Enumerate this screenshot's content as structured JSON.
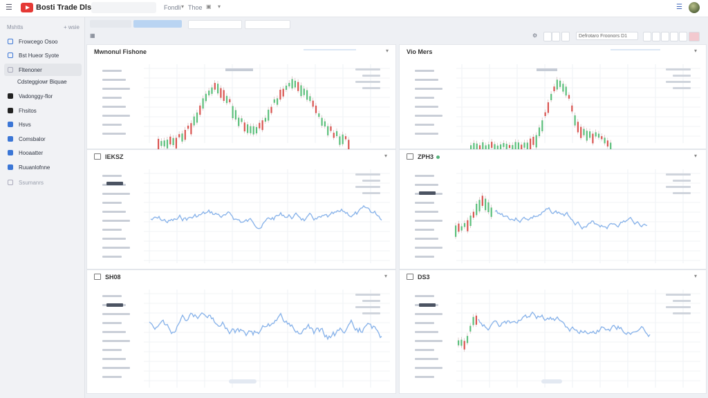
{
  "app": {
    "title": "Bosti Trade Dlsor"
  },
  "top_menu": [
    "Fondli",
    "Thoe"
  ],
  "sidebar": {
    "header": "Mshtts",
    "add": "+ wsie",
    "items": [
      {
        "label": "Frowcego Osoo",
        "icon": "window-icon"
      },
      {
        "label": "Bst Hueor Syote",
        "icon": "window-icon"
      },
      {
        "label": "Fltenoner",
        "icon": "window-icon",
        "active": true
      },
      {
        "label": "Cdsteggiowr Biquae",
        "icon": "none",
        "sub": true
      },
      {
        "label": "Vadonggy-flor",
        "icon": "window-icon"
      },
      {
        "label": "Fhsitos",
        "icon": "flag-icon"
      },
      {
        "label": "Hsvs",
        "icon": "phone-icon"
      },
      {
        "label": "Comsbalor",
        "icon": "doc-icon"
      },
      {
        "label": "Hooaatter",
        "icon": "doc-icon"
      },
      {
        "label": "Ruuanlofnne",
        "icon": "square-icon"
      },
      {
        "label": "Ssumanrs",
        "icon": "grid-icon",
        "muted": true
      }
    ]
  },
  "toolbar": {
    "select_value": "Defrotaro Froonors D1"
  },
  "panels": {
    "tl": {
      "title": "Mwnonul Fishone"
    },
    "tr": {
      "title": "Vio Mers"
    },
    "ml": {
      "title": "IEKSZ"
    },
    "mr": {
      "title": "ZPH3"
    },
    "bl": {
      "title": "SH08"
    },
    "br": {
      "title": "DS3"
    }
  },
  "colors": {
    "accent": "#3b76d6",
    "up": "#5bbf7b",
    "down": "#d9534f",
    "line": "#8ab4ea"
  }
}
